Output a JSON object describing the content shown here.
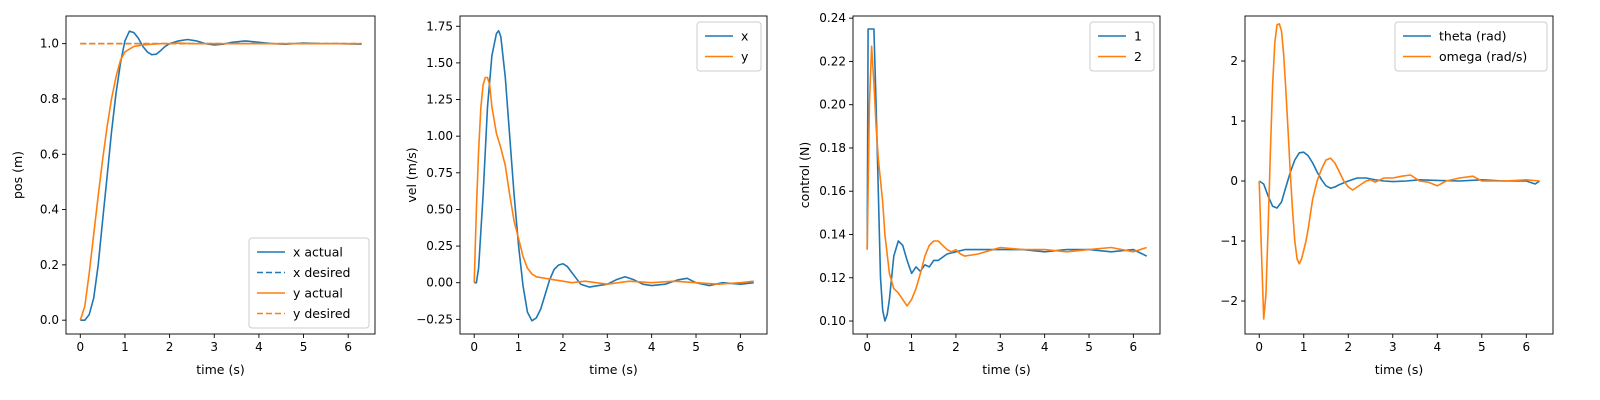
{
  "colors": {
    "series1": "#1f77b4",
    "series2": "#ff7f0e"
  },
  "chart_data": [
    {
      "type": "line",
      "xlabel": "time (s)",
      "ylabel": "pos (m)",
      "xlim": [
        -0.32,
        6.6
      ],
      "ylim": [
        -0.05,
        1.1
      ],
      "xticks": [
        0,
        1,
        2,
        3,
        4,
        5,
        6
      ],
      "yticks": [
        0.0,
        0.2,
        0.4,
        0.6,
        0.8,
        1.0
      ],
      "ytick_labels": [
        "0.0",
        "0.2",
        "0.4",
        "0.6",
        "0.8",
        "1.0"
      ],
      "legend": "bottom-right",
      "series": [
        {
          "name": "x actual",
          "color": "#1f77b4",
          "dash": "solid",
          "x": [
            0,
            0.1,
            0.2,
            0.3,
            0.4,
            0.5,
            0.6,
            0.7,
            0.8,
            0.9,
            1.0,
            1.1,
            1.2,
            1.3,
            1.4,
            1.5,
            1.6,
            1.7,
            1.8,
            1.9,
            2.0,
            2.2,
            2.4,
            2.6,
            2.8,
            3.0,
            3.2,
            3.4,
            3.7,
            4.0,
            4.3,
            4.6,
            5.0,
            5.4,
            5.8,
            6.3
          ],
          "y": [
            0.0,
            0.0,
            0.02,
            0.08,
            0.2,
            0.36,
            0.52,
            0.68,
            0.82,
            0.93,
            1.01,
            1.045,
            1.04,
            1.02,
            0.99,
            0.97,
            0.96,
            0.962,
            0.975,
            0.99,
            1.0,
            1.01,
            1.015,
            1.01,
            1.0,
            0.995,
            0.998,
            1.005,
            1.01,
            1.005,
            1.0,
            0.998,
            1.002,
            1.0,
            1.0,
            0.998
          ]
        },
        {
          "name": "x desired",
          "color": "#1f77b4",
          "dash": "dashed",
          "x": [
            0,
            6.3
          ],
          "y": [
            1.0,
            1.0
          ]
        },
        {
          "name": "y actual",
          "color": "#ff7f0e",
          "dash": "solid",
          "x": [
            0,
            0.1,
            0.2,
            0.3,
            0.4,
            0.5,
            0.6,
            0.7,
            0.8,
            0.9,
            1.0,
            1.2,
            1.4,
            1.6,
            1.8,
            2.0,
            2.2,
            2.5,
            3.0,
            3.5,
            4.0,
            4.5,
            5.0,
            5.5,
            6.0,
            6.3
          ],
          "y": [
            0.0,
            0.05,
            0.17,
            0.31,
            0.45,
            0.58,
            0.7,
            0.8,
            0.88,
            0.94,
            0.97,
            0.99,
            0.995,
            0.998,
            1.0,
            1.0,
            1.002,
            1.0,
            1.0,
            1.0,
            1.0,
            1.0,
            1.0,
            1.0,
            1.0,
            1.0
          ]
        },
        {
          "name": "y desired",
          "color": "#ff7f0e",
          "dash": "dashed",
          "x": [
            0,
            6.3
          ],
          "y": [
            1.0,
            1.0
          ]
        }
      ]
    },
    {
      "type": "line",
      "xlabel": "time (s)",
      "ylabel": "vel (m/s)",
      "xlim": [
        -0.32,
        6.6
      ],
      "ylim": [
        -0.35,
        1.82
      ],
      "xticks": [
        0,
        1,
        2,
        3,
        4,
        5,
        6
      ],
      "yticks": [
        -0.25,
        0.0,
        0.25,
        0.5,
        0.75,
        1.0,
        1.25,
        1.5,
        1.75
      ],
      "ytick_labels": [
        "−0.25",
        "0.00",
        "0.25",
        "0.50",
        "0.75",
        "1.00",
        "1.25",
        "1.50",
        "1.75"
      ],
      "legend": "top-right",
      "series": [
        {
          "name": "x",
          "color": "#1f77b4",
          "dash": "solid",
          "x": [
            0,
            0.05,
            0.1,
            0.2,
            0.3,
            0.4,
            0.5,
            0.55,
            0.6,
            0.7,
            0.8,
            0.9,
            1.0,
            1.1,
            1.2,
            1.3,
            1.4,
            1.5,
            1.6,
            1.7,
            1.8,
            1.9,
            2.0,
            2.1,
            2.2,
            2.3,
            2.4,
            2.6,
            2.8,
            3.0,
            3.2,
            3.4,
            3.6,
            3.8,
            4.0,
            4.3,
            4.6,
            4.8,
            5.0,
            5.3,
            5.6,
            6.0,
            6.3
          ],
          "y": [
            0.0,
            0.0,
            0.1,
            0.6,
            1.2,
            1.55,
            1.7,
            1.72,
            1.68,
            1.4,
            1.0,
            0.6,
            0.25,
            -0.02,
            -0.2,
            -0.26,
            -0.24,
            -0.18,
            -0.08,
            0.02,
            0.09,
            0.12,
            0.13,
            0.11,
            0.07,
            0.03,
            -0.01,
            -0.03,
            -0.02,
            -0.01,
            0.02,
            0.04,
            0.02,
            -0.01,
            -0.02,
            -0.01,
            0.02,
            0.03,
            0.0,
            -0.02,
            0.0,
            -0.01,
            0.0
          ]
        },
        {
          "name": "y",
          "color": "#ff7f0e",
          "dash": "solid",
          "x": [
            0,
            0.05,
            0.1,
            0.15,
            0.2,
            0.25,
            0.3,
            0.35,
            0.4,
            0.5,
            0.6,
            0.7,
            0.8,
            0.9,
            1.0,
            1.1,
            1.2,
            1.3,
            1.4,
            1.6,
            1.8,
            2.0,
            2.2,
            2.5,
            3.0,
            3.5,
            4.0,
            4.5,
            5.0,
            5.5,
            6.0,
            6.3
          ],
          "y": [
            0.0,
            0.5,
            0.9,
            1.2,
            1.35,
            1.4,
            1.4,
            1.35,
            1.2,
            1.02,
            0.92,
            0.8,
            0.6,
            0.42,
            0.3,
            0.18,
            0.1,
            0.06,
            0.04,
            0.03,
            0.02,
            0.01,
            0.0,
            0.01,
            -0.01,
            0.01,
            0.0,
            0.01,
            0.0,
            -0.01,
            0.0,
            0.01
          ]
        }
      ]
    },
    {
      "type": "line",
      "xlabel": "time (s)",
      "ylabel": "control (N)",
      "xlim": [
        -0.32,
        6.6
      ],
      "ylim": [
        0.094,
        0.241
      ],
      "xticks": [
        0,
        1,
        2,
        3,
        4,
        5,
        6
      ],
      "yticks": [
        0.1,
        0.12,
        0.14,
        0.16,
        0.18,
        0.2,
        0.22,
        0.24
      ],
      "ytick_labels": [
        "0.10",
        "0.12",
        "0.14",
        "0.16",
        "0.18",
        "0.20",
        "0.22",
        "0.24"
      ],
      "legend": "top-right",
      "series": [
        {
          "name": "1",
          "color": "#1f77b4",
          "dash": "solid",
          "x": [
            0,
            0.02,
            0.05,
            0.1,
            0.15,
            0.2,
            0.25,
            0.3,
            0.35,
            0.4,
            0.45,
            0.5,
            0.55,
            0.6,
            0.7,
            0.8,
            0.9,
            1.0,
            1.1,
            1.2,
            1.3,
            1.4,
            1.5,
            1.6,
            1.8,
            2.0,
            2.2,
            2.5,
            3.0,
            3.5,
            4.0,
            4.5,
            5.0,
            5.5,
            6.0,
            6.3
          ],
          "y": [
            0.133,
            0.235,
            0.235,
            0.235,
            0.235,
            0.2,
            0.16,
            0.12,
            0.105,
            0.1,
            0.103,
            0.11,
            0.12,
            0.13,
            0.137,
            0.135,
            0.128,
            0.122,
            0.125,
            0.123,
            0.126,
            0.125,
            0.128,
            0.128,
            0.131,
            0.132,
            0.133,
            0.133,
            0.133,
            0.133,
            0.132,
            0.133,
            0.133,
            0.132,
            0.133,
            0.13
          ]
        },
        {
          "name": "2",
          "color": "#ff7f0e",
          "dash": "solid",
          "x": [
            0,
            0.05,
            0.1,
            0.15,
            0.2,
            0.25,
            0.3,
            0.35,
            0.4,
            0.5,
            0.6,
            0.7,
            0.8,
            0.9,
            1.0,
            1.1,
            1.2,
            1.3,
            1.4,
            1.5,
            1.6,
            1.7,
            1.8,
            1.9,
            2.0,
            2.1,
            2.2,
            2.5,
            3.0,
            3.5,
            4.0,
            4.5,
            5.0,
            5.5,
            6.0,
            6.3
          ],
          "y": [
            0.133,
            0.2,
            0.227,
            0.21,
            0.19,
            0.175,
            0.165,
            0.155,
            0.14,
            0.122,
            0.115,
            0.113,
            0.11,
            0.107,
            0.11,
            0.115,
            0.122,
            0.13,
            0.135,
            0.137,
            0.137,
            0.135,
            0.133,
            0.132,
            0.133,
            0.131,
            0.13,
            0.131,
            0.134,
            0.133,
            0.133,
            0.132,
            0.133,
            0.134,
            0.132,
            0.134
          ]
        }
      ]
    },
    {
      "type": "line",
      "xlabel": "time (s)",
      "ylabel": "",
      "xlim": [
        -0.32,
        6.6
      ],
      "ylim": [
        -2.55,
        2.75
      ],
      "xticks": [
        0,
        1,
        2,
        3,
        4,
        5,
        6
      ],
      "yticks": [
        -2,
        -1,
        0,
        1,
        2
      ],
      "ytick_labels": [
        "−2",
        "−1",
        "0",
        "1",
        "2"
      ],
      "legend": "top-right",
      "series": [
        {
          "name": "theta (rad)",
          "color": "#1f77b4",
          "dash": "solid",
          "x": [
            0,
            0.1,
            0.2,
            0.3,
            0.4,
            0.5,
            0.6,
            0.7,
            0.8,
            0.9,
            1.0,
            1.1,
            1.2,
            1.3,
            1.4,
            1.5,
            1.6,
            1.7,
            1.8,
            2.0,
            2.2,
            2.4,
            2.6,
            2.8,
            3.0,
            3.3,
            3.6,
            4.0,
            4.5,
            5.0,
            5.5,
            6.0,
            6.2,
            6.3
          ],
          "y": [
            0.0,
            -0.05,
            -0.25,
            -0.42,
            -0.45,
            -0.35,
            -0.1,
            0.15,
            0.35,
            0.47,
            0.48,
            0.42,
            0.3,
            0.15,
            0.02,
            -0.08,
            -0.12,
            -0.1,
            -0.06,
            0.0,
            0.05,
            0.05,
            0.02,
            0.0,
            -0.01,
            0.0,
            0.02,
            0.01,
            0.0,
            0.02,
            0.0,
            0.0,
            -0.05,
            0.0
          ]
        },
        {
          "name": "omega (rad/s)",
          "color": "#ff7f0e",
          "dash": "solid",
          "x": [
            0,
            0.05,
            0.1,
            0.15,
            0.2,
            0.25,
            0.3,
            0.35,
            0.4,
            0.45,
            0.5,
            0.55,
            0.6,
            0.65,
            0.7,
            0.75,
            0.8,
            0.85,
            0.9,
            0.95,
            1.0,
            1.05,
            1.1,
            1.15,
            1.2,
            1.3,
            1.4,
            1.5,
            1.6,
            1.7,
            1.8,
            1.9,
            2.0,
            2.1,
            2.2,
            2.3,
            2.4,
            2.5,
            2.6,
            2.8,
            3.0,
            3.2,
            3.4,
            3.6,
            3.8,
            4.0,
            4.2,
            4.5,
            4.8,
            5.0,
            5.5,
            6.0,
            6.3
          ],
          "y": [
            0.0,
            -1.2,
            -2.3,
            -1.9,
            -0.8,
            0.5,
            1.6,
            2.3,
            2.6,
            2.62,
            2.5,
            2.1,
            1.5,
            0.8,
            0.1,
            -0.5,
            -1.0,
            -1.3,
            -1.38,
            -1.3,
            -1.15,
            -1.0,
            -0.8,
            -0.55,
            -0.3,
            0.0,
            0.2,
            0.35,
            0.38,
            0.3,
            0.15,
            0.0,
            -0.1,
            -0.15,
            -0.1,
            -0.05,
            0.0,
            0.02,
            -0.02,
            0.05,
            0.05,
            0.08,
            0.1,
            0.0,
            -0.02,
            -0.08,
            0.0,
            0.05,
            0.08,
            0.0,
            0.0,
            0.02,
            0.0
          ]
        }
      ]
    }
  ]
}
